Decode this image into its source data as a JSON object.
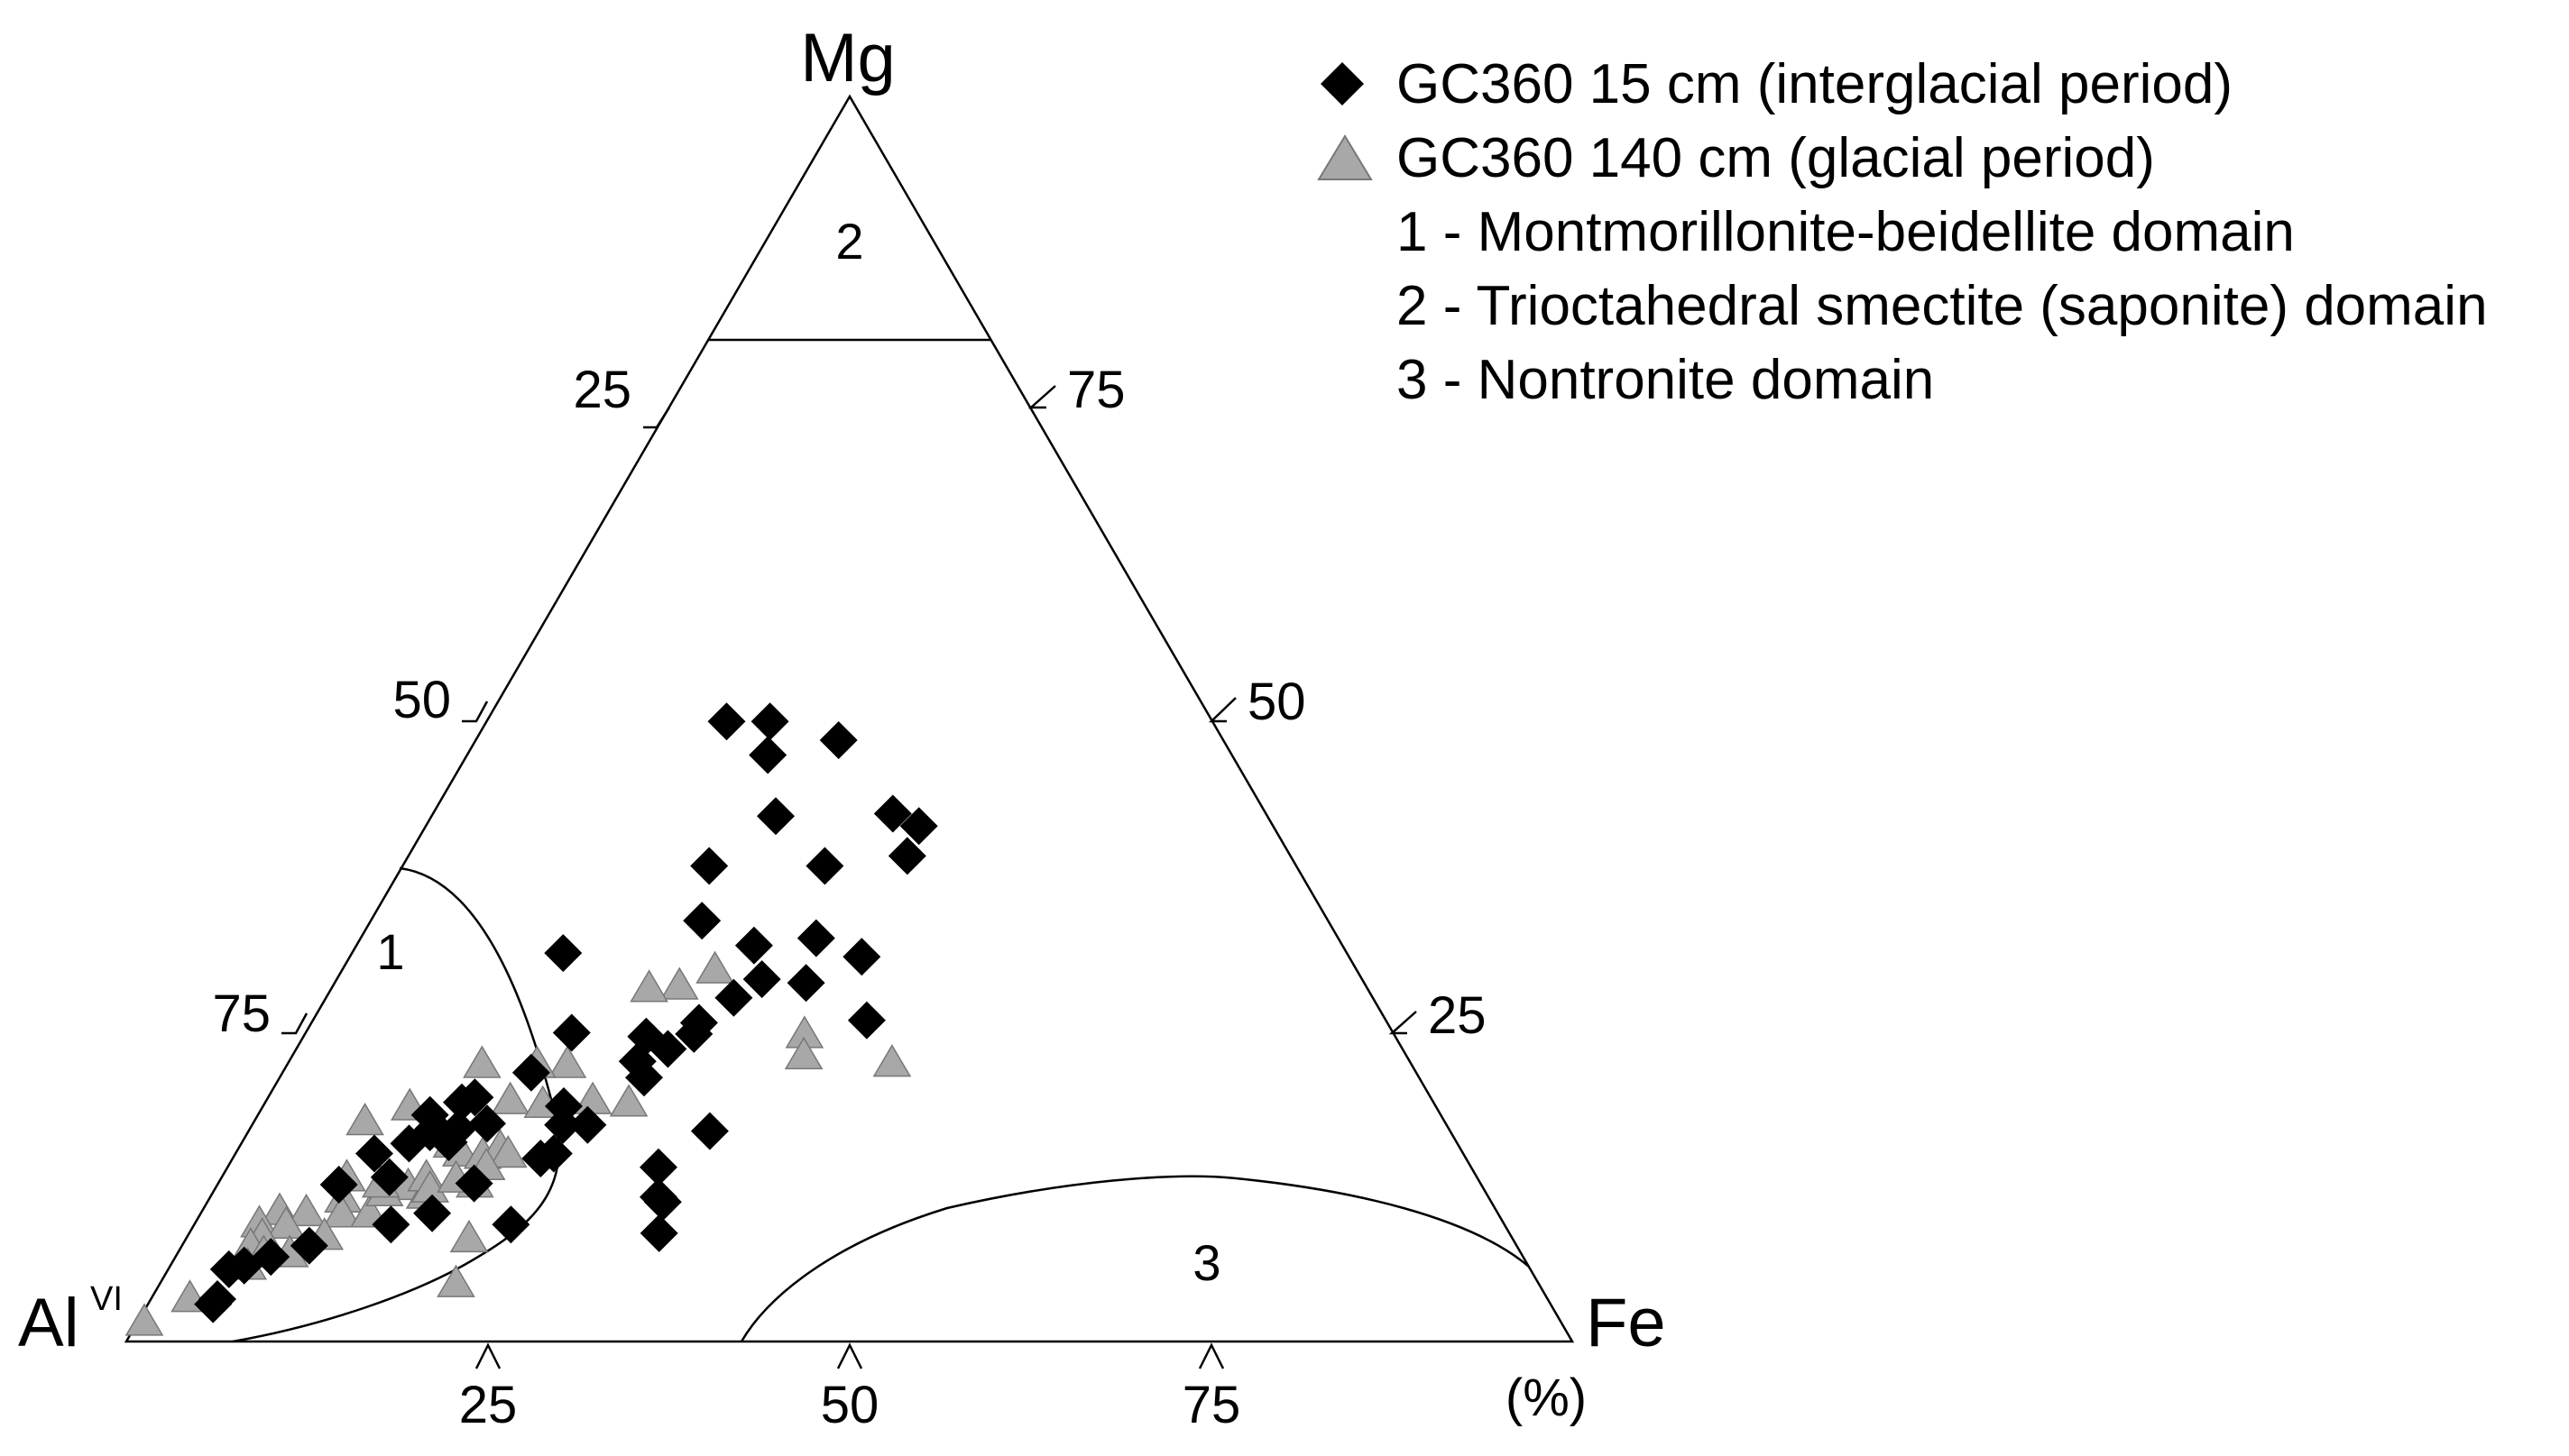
{
  "chart_data": {
    "type": "scatter",
    "subtype": "ternary",
    "vertices": {
      "top": "Mg",
      "left": "Al",
      "left_superscript": "VI",
      "right": "Fe"
    },
    "unit_label": "(%)",
    "ticks": {
      "bottom_Fe": [
        "25",
        "50",
        "75"
      ],
      "left_Mg": [
        "25",
        "50",
        "75"
      ],
      "right_Al": [
        "75",
        "50",
        "25"
      ]
    },
    "domains": [
      {
        "id": "1",
        "label": "1"
      },
      {
        "id": "2",
        "label": "2"
      },
      {
        "id": "3",
        "label": "3"
      }
    ],
    "legend": [
      {
        "marker": "diamond",
        "label": "GC360 15 cm (interglacial period)"
      },
      {
        "marker": "triangle",
        "label": "GC360 140 cm (glacial period)"
      },
      {
        "marker": "none",
        "label": "1 - Montmorillonite-beidellite domain"
      },
      {
        "marker": "none",
        "label": "2 - Trioctahedral smectite (saponite) domain"
      },
      {
        "marker": "none",
        "label": "3 - Nontronite domain"
      }
    ],
    "series": [
      {
        "name": "GC360 15 cm (interglacial period)",
        "marker": "diamond",
        "color": "#000000",
        "points": [
          {
            "mg": 49.8,
            "fe": 16.6
          },
          {
            "mg": 49.8,
            "fe": 19.6
          },
          {
            "mg": 47.1,
            "fe": 20.8
          },
          {
            "mg": 48.3,
            "fe": 25.1
          },
          {
            "mg": 42.2,
            "fe": 23.8
          },
          {
            "mg": 38.2,
            "fe": 21.2
          },
          {
            "mg": 42.4,
            "fe": 31.8
          },
          {
            "mg": 38.2,
            "fe": 29.2
          },
          {
            "mg": 41.4,
            "fe": 34.1
          },
          {
            "mg": 39.0,
            "fe": 34.5
          },
          {
            "mg": 31.2,
            "fe": 14.6
          },
          {
            "mg": 33.8,
            "fe": 22.9
          },
          {
            "mg": 31.8,
            "fe": 27.5
          },
          {
            "mg": 32.4,
            "fe": 31.5
          },
          {
            "mg": 29.1,
            "fe": 29.4
          },
          {
            "mg": 30.9,
            "fe": 35.4
          },
          {
            "mg": 28.8,
            "fe": 32.6
          },
          {
            "mg": 27.6,
            "fe": 28.2
          },
          {
            "mg": 25.8,
            "fe": 38.3
          },
          {
            "mg": 25.6,
            "fe": 26.8
          },
          {
            "mg": 24.7,
            "fe": 26.9
          },
          {
            "mg": 24.5,
            "fe": 23.7
          },
          {
            "mg": 22.5,
            "fe": 24.1
          },
          {
            "mg": 23.5,
            "fe": 25.7
          },
          {
            "mg": 24.8,
            "fe": 18.4
          },
          {
            "mg": 21.2,
            "fe": 25.2
          },
          {
            "mg": 18.9,
            "fe": 20.8
          },
          {
            "mg": 17.4,
            "fe": 21.5
          },
          {
            "mg": 15.1,
            "fe": 22.0
          },
          {
            "mg": 21.6,
            "fe": 17.2
          },
          {
            "mg": 17.5,
            "fe": 16.2
          },
          {
            "mg": 17.4,
            "fe": 23.2
          },
          {
            "mg": 16.9,
            "fe": 31.9
          },
          {
            "mg": 14.0,
            "fe": 29.8
          },
          {
            "mg": 11.6,
            "fe": 31.0
          },
          {
            "mg": 11.2,
            "fe": 31.5
          },
          {
            "mg": 8.7,
            "fe": 32.5
          },
          {
            "mg": 9.4,
            "fe": 21.9
          },
          {
            "mg": 12.7,
            "fe": 17.7
          },
          {
            "mg": 16.0,
            "fe": 14.3
          },
          {
            "mg": 17.1,
            "fe": 14.4
          },
          {
            "mg": 19.6,
            "fe": 14.3
          },
          {
            "mg": 19.2,
            "fe": 13.6
          },
          {
            "mg": 16.8,
            "fe": 12.6
          },
          {
            "mg": 15.9,
            "fe": 11.6
          },
          {
            "mg": 18.2,
            "fe": 11.9
          },
          {
            "mg": 17.1,
            "fe": 12.7
          },
          {
            "mg": 16.5,
            "fe": 13.7
          },
          {
            "mg": 15.1,
            "fe": 9.6
          },
          {
            "mg": 13.2,
            "fe": 11.6
          },
          {
            "mg": 12.6,
            "fe": 8.4
          },
          {
            "mg": 9.4,
            "fe": 13.6
          },
          {
            "mg": 10.3,
            "fe": 16.0
          },
          {
            "mg": 6.8,
            "fe": 6.6
          },
          {
            "mg": 6.1,
            "fe": 5.1
          },
          {
            "mg": 3.4,
            "fe": 4.6
          },
          {
            "mg": 3.0,
            "fe": 4.5
          },
          {
            "mg": 5.8,
            "fe": 4.2
          },
          {
            "mg": 14.7,
            "fe": 21.3
          },
          {
            "mg": 7.7,
            "fe": 8.8
          }
        ]
      },
      {
        "name": "GC360 140 cm (glacial period)",
        "marker": "triangle",
        "color": "#a8a8a8",
        "points": [
          {
            "mg": 29.8,
            "fe": 25.8
          },
          {
            "mg": 28.5,
            "fe": 24.0
          },
          {
            "mg": 28.3,
            "fe": 22.0
          },
          {
            "mg": 24.6,
            "fe": 34.6
          },
          {
            "mg": 22.9,
            "fe": 35.4
          },
          {
            "mg": 22.3,
            "fe": 41.8
          },
          {
            "mg": 22.2,
            "fe": 19.4
          },
          {
            "mg": 22.2,
            "fe": 17.3
          },
          {
            "mg": 22.2,
            "fe": 13.5
          },
          {
            "mg": 18.8,
            "fe": 10.2
          },
          {
            "mg": 17.6,
            "fe": 7.7
          },
          {
            "mg": 15.8,
            "fe": 14.6
          },
          {
            "mg": 15.1,
            "fe": 15.6
          },
          {
            "mg": 14.9,
            "fe": 17.2
          },
          {
            "mg": 15.5,
            "fe": 18.1
          },
          {
            "mg": 15.0,
            "fe": 18.9
          },
          {
            "mg": 14.0,
            "fe": 17.9
          },
          {
            "mg": 12.6,
            "fe": 17.8
          },
          {
            "mg": 13.1,
            "fe": 8.7
          },
          {
            "mg": 12.4,
            "fe": 13.3
          },
          {
            "mg": 11.7,
            "fe": 14.8
          },
          {
            "mg": 11.4,
            "fe": 9.3
          },
          {
            "mg": 10.4,
            "fe": 5.4
          },
          {
            "mg": 10.3,
            "fe": 7.3
          },
          {
            "mg": 10.2,
            "fe": 9.8
          },
          {
            "mg": 10.2,
            "fe": 11.7
          },
          {
            "mg": 9.4,
            "fe": 4.5
          },
          {
            "mg": 9.3,
            "fe": 6.4
          },
          {
            "mg": 8.4,
            "fe": 5.2
          },
          {
            "mg": 8.4,
            "fe": 9.5
          },
          {
            "mg": 7.6,
            "fe": 4.8
          },
          {
            "mg": 7.0,
            "fe": 7.8
          },
          {
            "mg": 7.0,
            "fe": 6.0
          },
          {
            "mg": 6.0,
            "fe": 5.4
          },
          {
            "mg": 3.4,
            "fe": 2.7
          },
          {
            "mg": 8.2,
            "fe": 19.6
          },
          {
            "mg": 4.6,
            "fe": 20.5
          },
          {
            "mg": 11.9,
            "fe": 11.9
          },
          {
            "mg": 12.6,
            "fe": 11.3
          },
          {
            "mg": 13.1,
            "fe": 14.2
          },
          {
            "mg": 12.2,
            "fe": 14.9
          },
          {
            "mg": 19.3,
            "fe": 22.6
          },
          {
            "mg": 19.3,
            "fe": 16.9
          },
          {
            "mg": 19.0,
            "fe": 19.3
          },
          {
            "mg": 19.1,
            "fe": 25.2
          },
          {
            "mg": 13.0,
            "fe": 16.3
          },
          {
            "mg": 1.5,
            "fe": 0.5
          }
        ]
      }
    ]
  }
}
